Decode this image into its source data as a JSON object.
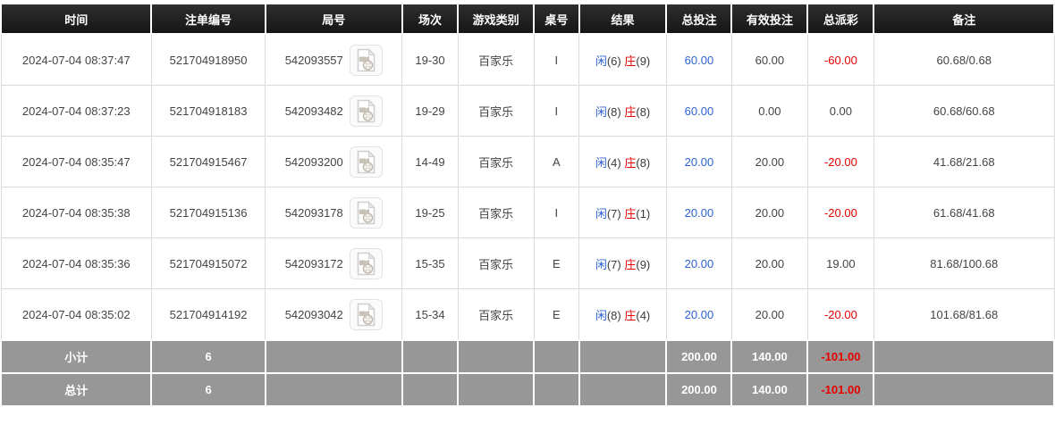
{
  "colors": {
    "header_bg": "#161616",
    "header_bg_top": "#2e2e2e",
    "header_text": "#ffffff",
    "row_text": "#444444",
    "blue": "#2d62d2",
    "red": "#e60000",
    "summary_bg": "#979797",
    "summary_text": "#ffffff",
    "grid_line": "#dadada"
  },
  "icons": {
    "round_video": "video-file-icon"
  },
  "table": {
    "columns": [
      {
        "key": "time",
        "label": "时间"
      },
      {
        "key": "bet_id",
        "label": "注单编号"
      },
      {
        "key": "round_id",
        "label": "局号"
      },
      {
        "key": "session",
        "label": "场次"
      },
      {
        "key": "game_type",
        "label": "游戏类别"
      },
      {
        "key": "table_no",
        "label": "桌号"
      },
      {
        "key": "result",
        "label": "结果"
      },
      {
        "key": "total_bet",
        "label": "总投注"
      },
      {
        "key": "valid_bet",
        "label": "有效投注"
      },
      {
        "key": "total_payout",
        "label": "总派彩"
      },
      {
        "key": "remark",
        "label": "备注"
      }
    ],
    "rows": [
      {
        "time": "2024-07-04 08:37:47",
        "bet_id": "521704918950",
        "round_id": "542093557",
        "session": "19-30",
        "game_type": "百家乐",
        "table_no": "I",
        "result_player": "闲",
        "result_player_score": "(6)",
        "result_banker": "庄",
        "result_banker_score": "(9)",
        "total_bet": "60.00",
        "valid_bet": "60.00",
        "total_payout": "-60.00",
        "remark": "60.68/0.68"
      },
      {
        "time": "2024-07-04 08:37:23",
        "bet_id": "521704918183",
        "round_id": "542093482",
        "session": "19-29",
        "game_type": "百家乐",
        "table_no": "I",
        "result_player": "闲",
        "result_player_score": "(8)",
        "result_banker": "庄",
        "result_banker_score": "(8)",
        "total_bet": "60.00",
        "valid_bet": "0.00",
        "total_payout": "0.00",
        "remark": "60.68/60.68"
      },
      {
        "time": "2024-07-04 08:35:47",
        "bet_id": "521704915467",
        "round_id": "542093200",
        "session": "14-49",
        "game_type": "百家乐",
        "table_no": "A",
        "result_player": "闲",
        "result_player_score": "(4)",
        "result_banker": "庄",
        "result_banker_score": "(8)",
        "total_bet": "20.00",
        "valid_bet": "20.00",
        "total_payout": "-20.00",
        "remark": "41.68/21.68"
      },
      {
        "time": "2024-07-04 08:35:38",
        "bet_id": "521704915136",
        "round_id": "542093178",
        "session": "19-25",
        "game_type": "百家乐",
        "table_no": "I",
        "result_player": "闲",
        "result_player_score": "(7)",
        "result_banker": "庄",
        "result_banker_score": "(1)",
        "total_bet": "20.00",
        "valid_bet": "20.00",
        "total_payout": "-20.00",
        "remark": "61.68/41.68"
      },
      {
        "time": "2024-07-04 08:35:36",
        "bet_id": "521704915072",
        "round_id": "542093172",
        "session": "15-35",
        "game_type": "百家乐",
        "table_no": "E",
        "result_player": "闲",
        "result_player_score": "(7)",
        "result_banker": "庄",
        "result_banker_score": "(9)",
        "total_bet": "20.00",
        "valid_bet": "20.00",
        "total_payout": "19.00",
        "remark": "81.68/100.68"
      },
      {
        "time": "2024-07-04 08:35:02",
        "bet_id": "521704914192",
        "round_id": "542093042",
        "session": "15-34",
        "game_type": "百家乐",
        "table_no": "E",
        "result_player": "闲",
        "result_player_score": "(8)",
        "result_banker": "庄",
        "result_banker_score": "(4)",
        "total_bet": "20.00",
        "valid_bet": "20.00",
        "total_payout": "-20.00",
        "remark": "101.68/81.68"
      }
    ],
    "summary_rows": [
      {
        "name": "subtotal",
        "label": "小计",
        "count": "6",
        "total_bet": "200.00",
        "valid_bet": "140.00",
        "total_payout": "-101.00"
      },
      {
        "name": "grand-total",
        "label": "总计",
        "count": "6",
        "total_bet": "200.00",
        "valid_bet": "140.00",
        "total_payout": "-101.00"
      }
    ]
  }
}
